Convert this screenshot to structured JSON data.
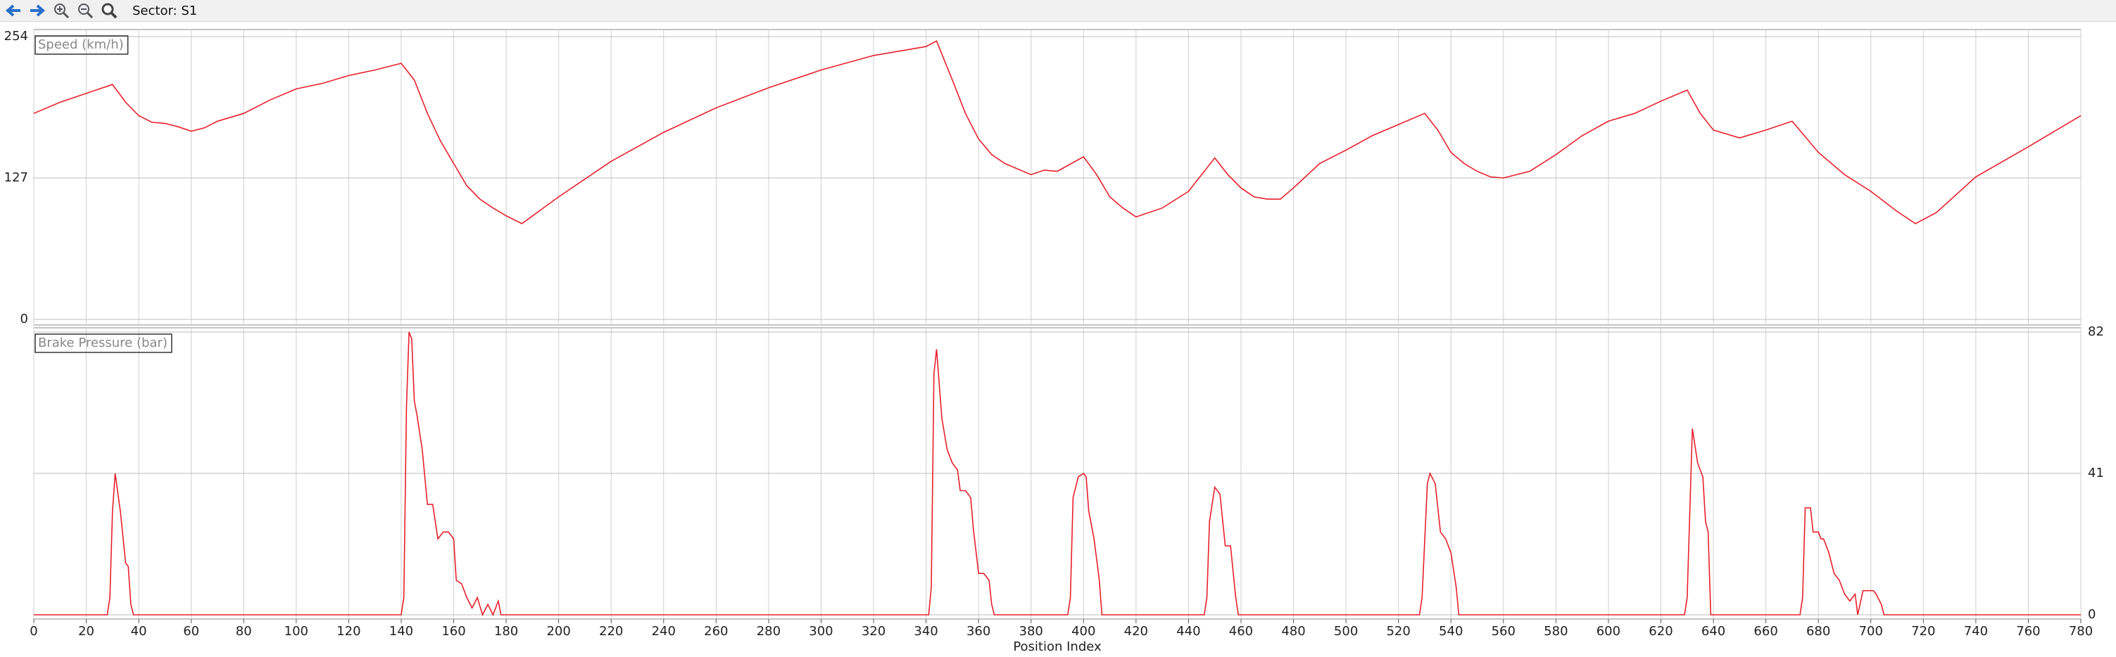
{
  "toolbar": {
    "label": "Sector: S1"
  },
  "chart_data": [
    {
      "type": "line",
      "label": "Speed (km/h)",
      "yaxis_side": "left",
      "grid": true,
      "ylim": [
        0,
        254
      ],
      "yticks": [
        0,
        127,
        254
      ],
      "x": [
        0,
        10,
        20,
        30,
        35,
        40,
        45,
        50,
        55,
        60,
        65,
        70,
        80,
        90,
        100,
        110,
        120,
        130,
        140,
        145,
        150,
        155,
        160,
        165,
        170,
        175,
        180,
        186,
        200,
        220,
        240,
        260,
        280,
        300,
        320,
        340,
        344,
        350,
        355,
        360,
        365,
        370,
        380,
        385,
        390,
        400,
        405,
        410,
        415,
        420,
        430,
        440,
        450,
        455,
        460,
        465,
        470,
        475,
        480,
        490,
        500,
        510,
        520,
        530,
        535,
        540,
        545,
        550,
        555,
        560,
        570,
        580,
        590,
        600,
        610,
        620,
        630,
        635,
        640,
        650,
        660,
        670,
        680,
        690,
        700,
        710,
        717,
        725,
        740,
        760,
        780
      ],
      "series": [
        {
          "name": "Speed",
          "color": "#e8202a",
          "values": [
            185,
            195,
            203,
            211,
            195,
            183,
            177,
            176,
            173,
            169,
            172,
            178,
            185,
            197,
            207,
            212,
            219,
            224,
            230,
            215,
            185,
            160,
            140,
            120,
            108,
            100,
            93,
            86,
            110,
            142,
            168,
            190,
            208,
            224,
            237,
            245,
            250,
            215,
            185,
            162,
            148,
            140,
            130,
            134,
            133,
            146,
            130,
            110,
            100,
            92,
            100,
            115,
            145,
            130,
            118,
            110,
            108,
            108,
            118,
            140,
            152,
            165,
            175,
            185,
            170,
            150,
            140,
            133,
            128,
            127,
            133,
            148,
            165,
            178,
            185,
            196,
            206,
            185,
            170,
            163,
            170,
            178,
            150,
            130,
            115,
            97,
            86,
            96,
            128,
            155,
            183
          ]
        }
      ]
    },
    {
      "type": "line",
      "label": "Brake Pressure (bar)",
      "yaxis_side": "right",
      "grid": true,
      "ylim": [
        0,
        82
      ],
      "yticks": [
        0,
        41,
        82
      ],
      "xlim": [
        0,
        780
      ],
      "xticks": [
        0,
        20,
        40,
        60,
        80,
        100,
        120,
        140,
        160,
        180,
        200,
        220,
        240,
        260,
        280,
        300,
        320,
        340,
        360,
        380,
        400,
        420,
        440,
        460,
        480,
        500,
        520,
        540,
        560,
        580,
        600,
        620,
        640,
        660,
        680,
        700,
        720,
        740,
        760,
        780
      ],
      "xlabel": "Position Index",
      "x": [
        0,
        28,
        29,
        30,
        31,
        33,
        35,
        36,
        37,
        38,
        140,
        141,
        142,
        143,
        144,
        145,
        146,
        148,
        150,
        152,
        154,
        156,
        158,
        160,
        161,
        163,
        165,
        167,
        169,
        171,
        173,
        175,
        177,
        178,
        341,
        342,
        343,
        344,
        346,
        348,
        350,
        352,
        353,
        355,
        357,
        358,
        360,
        362,
        364,
        365,
        366,
        394,
        395,
        396,
        398,
        400,
        401,
        402,
        404,
        406,
        407,
        446,
        447,
        448,
        450,
        452,
        454,
        456,
        458,
        459,
        528,
        529,
        531,
        532,
        534,
        536,
        538,
        540,
        542,
        543,
        629,
        630,
        632,
        634,
        636,
        637,
        638,
        639,
        673,
        674,
        675,
        677,
        678,
        680,
        681,
        682,
        684,
        686,
        688,
        690,
        692,
        694,
        695,
        697,
        699,
        701,
        702,
        704,
        705,
        780
      ],
      "series": [
        {
          "name": "Brake Pressure",
          "color": "#e8202a",
          "values": [
            0,
            0,
            5,
            30,
            41,
            30,
            15,
            14,
            3,
            0,
            0,
            5,
            60,
            82,
            80,
            62,
            58,
            48,
            32,
            32,
            22,
            24,
            24,
            22,
            10,
            9,
            5,
            2,
            5,
            0,
            3,
            0,
            4,
            0,
            0,
            8,
            70,
            77,
            57,
            48,
            44,
            42,
            36,
            36,
            34,
            25,
            12,
            12,
            10,
            3,
            0,
            0,
            5,
            34,
            40,
            41,
            40,
            30,
            22,
            10,
            0,
            0,
            5,
            27,
            37,
            35,
            20,
            20,
            5,
            0,
            0,
            5,
            38,
            41,
            38,
            24,
            22,
            18,
            8,
            0,
            0,
            5,
            54,
            44,
            40,
            27,
            24,
            0,
            0,
            5,
            31,
            31,
            24,
            24,
            22,
            22,
            18,
            12,
            10,
            6,
            4,
            6,
            0,
            7,
            7,
            7,
            6,
            3,
            0,
            0
          ]
        }
      ]
    }
  ]
}
